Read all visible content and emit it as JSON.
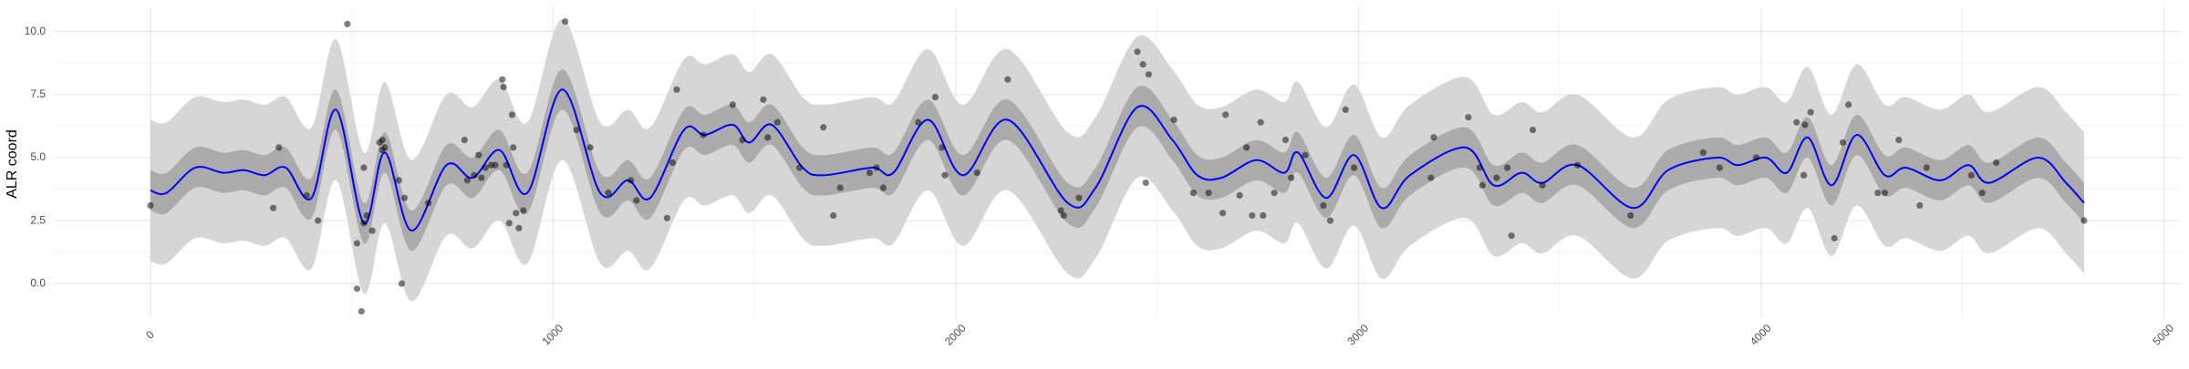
{
  "chart_data": {
    "type": "line",
    "y_label": "ALR coord",
    "xlim": [
      -240,
      5040
    ],
    "ylim": [
      -1.4,
      11
    ],
    "xticks": [
      0,
      1000,
      2000,
      3000,
      4000,
      5000
    ],
    "yticks": [
      {
        "value": 0,
        "label": "0.0"
      },
      2.5,
      {
        "value": 5,
        "label": "5.0"
      },
      7.5,
      {
        "value": 10,
        "label": "10.0"
      }
    ],
    "grid": true,
    "x": [
      0,
      40,
      111,
      180,
      232,
      284,
      336,
      400,
      461,
      530,
      582,
      648,
      735,
      800,
      867,
      936,
      1023,
      1117,
      1186,
      1241,
      1325,
      1377,
      1446,
      1487,
      1543,
      1620,
      1671,
      1793,
      1845,
      1931,
      2018,
      2129,
      2278,
      2347,
      2451,
      2538,
      2600,
      2660,
      2746,
      2816,
      2850,
      2920,
      2989,
      3058,
      3128,
      3266,
      3336,
      3405,
      3457,
      3544,
      3682,
      3769,
      3890,
      3942,
      4012,
      4064,
      4116,
      4175,
      4237,
      4307,
      4359,
      4445,
      4515,
      4567,
      4688,
      4757,
      4802
    ],
    "bands": [
      {
        "color": "#d6d6d6",
        "lower": [
          0.9,
          0.8,
          1.8,
          1.6,
          1.7,
          1.5,
          1.8,
          0.6,
          4.1,
          -0.4,
          2.4,
          -0.7,
          1.9,
          1.4,
          2.5,
          0.8,
          4.9,
          0.8,
          1.3,
          0.6,
          3.3,
          3.1,
          3.5,
          2.8,
          3.5,
          1.8,
          1.5,
          1.8,
          1.6,
          3.7,
          1.5,
          3.7,
          0.4,
          1.0,
          4.2,
          2.9,
          1.5,
          1.4,
          2.1,
          1.6,
          2.4,
          0.6,
          2.3,
          0.2,
          1.5,
          2.6,
          1.1,
          1.6,
          1.2,
          1.9,
          0.2,
          1.7,
          2.2,
          1.9,
          2.2,
          1.6,
          3.0,
          1.1,
          3.1,
          1.5,
          1.8,
          1.3,
          1.9,
          1.2,
          2.2,
          1.2,
          0.4
        ],
        "upper": [
          6.5,
          6.4,
          7.4,
          7.2,
          7.3,
          7.1,
          7.4,
          6.2,
          9.7,
          5.2,
          8.0,
          4.9,
          7.5,
          7.0,
          8.1,
          6.4,
          10.5,
          6.4,
          6.9,
          6.2,
          8.9,
          8.7,
          9.1,
          8.4,
          9.1,
          7.4,
          7.1,
          7.4,
          7.2,
          9.3,
          7.1,
          9.3,
          6.0,
          6.6,
          9.8,
          8.5,
          7.1,
          7.0,
          7.7,
          7.2,
          8.0,
          6.2,
          7.9,
          5.8,
          7.1,
          8.2,
          6.7,
          7.2,
          6.8,
          7.5,
          5.8,
          7.3,
          7.8,
          7.5,
          7.8,
          7.2,
          8.6,
          6.7,
          8.7,
          7.1,
          7.4,
          6.9,
          7.5,
          6.8,
          7.8,
          6.8,
          6.0
        ]
      },
      {
        "color": "#ababab",
        "lower": [
          2.9,
          2.8,
          3.8,
          3.6,
          3.7,
          3.5,
          3.8,
          2.6,
          6.1,
          1.6,
          4.4,
          1.3,
          3.9,
          3.4,
          4.5,
          2.8,
          6.9,
          2.8,
          3.3,
          2.6,
          5.3,
          5.1,
          5.5,
          4.8,
          5.5,
          3.8,
          3.5,
          3.8,
          3.6,
          5.7,
          3.5,
          5.7,
          2.4,
          3.0,
          6.2,
          4.9,
          3.5,
          3.4,
          4.1,
          3.6,
          4.4,
          2.6,
          4.3,
          2.2,
          3.5,
          4.6,
          3.1,
          3.6,
          3.2,
          3.9,
          2.2,
          3.7,
          4.2,
          3.9,
          4.2,
          3.6,
          5.0,
          3.1,
          5.1,
          3.5,
          3.8,
          3.3,
          3.9,
          3.2,
          4.2,
          3.2,
          2.4
        ],
        "upper": [
          4.5,
          4.4,
          5.4,
          5.2,
          5.3,
          5.1,
          5.4,
          4.2,
          7.7,
          3.2,
          6.0,
          2.9,
          5.5,
          5.0,
          6.1,
          4.4,
          8.5,
          4.4,
          4.9,
          4.2,
          6.9,
          6.7,
          7.1,
          6.4,
          7.1,
          5.4,
          5.1,
          5.4,
          5.2,
          7.3,
          5.1,
          7.3,
          4.0,
          4.6,
          7.8,
          6.5,
          5.1,
          5.0,
          5.7,
          5.2,
          6.0,
          4.2,
          5.9,
          3.8,
          5.1,
          6.2,
          4.7,
          5.2,
          4.8,
          5.5,
          3.8,
          5.3,
          5.8,
          5.5,
          5.8,
          5.2,
          6.6,
          4.7,
          6.7,
          5.1,
          5.4,
          4.9,
          5.5,
          4.8,
          5.8,
          4.8,
          4.0
        ]
      }
    ],
    "mean": {
      "color": "#0000ff",
      "values": [
        3.7,
        3.6,
        4.6,
        4.4,
        4.5,
        4.3,
        4.6,
        3.4,
        6.9,
        2.4,
        5.2,
        2.1,
        4.7,
        4.2,
        5.3,
        3.6,
        7.7,
        3.6,
        4.1,
        3.4,
        6.1,
        5.9,
        6.3,
        5.6,
        6.3,
        4.6,
        4.3,
        4.6,
        4.4,
        6.5,
        4.3,
        6.5,
        3.2,
        3.8,
        7.0,
        5.7,
        4.3,
        4.2,
        4.9,
        4.4,
        5.2,
        3.4,
        5.1,
        3.0,
        4.3,
        5.4,
        3.9,
        4.4,
        4.0,
        4.7,
        3.0,
        4.5,
        5.0,
        4.7,
        5.0,
        4.4,
        5.8,
        3.9,
        5.9,
        4.3,
        4.6,
        4.1,
        4.7,
        4.0,
        5.0,
        4.0,
        3.2
      ]
    },
    "points": {
      "color": "#000000",
      "x": [
        0,
        319,
        305,
        388,
        416,
        489,
        513,
        513,
        524,
        530,
        530,
        537,
        551,
        569,
        576,
        576,
        582,
        617,
        624,
        631,
        690,
        780,
        787,
        804,
        815,
        822,
        832,
        846,
        856,
        874,
        877,
        884,
        891,
        901,
        898,
        908,
        915,
        926,
        1030,
        1058,
        1092,
        1137,
        1193,
        1207,
        1283,
        1297,
        1307,
        1373,
        1446,
        1470,
        1522,
        1533,
        1557,
        1612,
        1671,
        1696,
        1713,
        1786,
        1803,
        1820,
        1907,
        1949,
        1966,
        1973,
        2053,
        2129,
        2261,
        2268,
        2306,
        2451,
        2465,
        2472,
        2479,
        2542,
        2590,
        2628,
        2663,
        2670,
        2705,
        2722,
        2736,
        2757,
        2763,
        2791,
        2819,
        2833,
        2868,
        2913,
        2930,
        2968,
        2989,
        3180,
        3187,
        3273,
        3301,
        3308,
        3343,
        3370,
        3380,
        3433,
        3457,
        3544,
        3676,
        3856,
        3897,
        3988,
        4088,
        4106,
        4109,
        4123,
        4182,
        4203,
        4217,
        4290,
        4307,
        4342,
        4394,
        4411,
        4522,
        4549,
        4584,
        4802
      ],
      "y": [
        3.1,
        5.4,
        3.0,
        3.5,
        2.5,
        10.3,
        1.6,
        -0.2,
        -1.1,
        4.6,
        2.4,
        2.7,
        2.1,
        5.6,
        5.7,
        5.3,
        5.4,
        4.1,
        0.0,
        3.4,
        3.2,
        5.7,
        4.1,
        4.3,
        5.1,
        4.2,
        4.6,
        4.7,
        4.7,
        8.1,
        7.8,
        4.7,
        2.4,
        5.4,
        6.7,
        2.8,
        2.2,
        2.9,
        10.4,
        6.1,
        5.4,
        3.6,
        4.1,
        3.3,
        2.6,
        4.8,
        7.7,
        5.9,
        7.1,
        5.7,
        7.3,
        5.8,
        6.4,
        4.6,
        6.2,
        2.7,
        3.8,
        4.4,
        4.6,
        3.8,
        6.4,
        7.4,
        5.4,
        4.3,
        4.4,
        8.1,
        2.9,
        2.7,
        3.4,
        9.2,
        8.7,
        4.0,
        8.3,
        6.5,
        3.6,
        3.6,
        2.8,
        6.7,
        3.5,
        5.4,
        2.7,
        6.4,
        2.7,
        3.6,
        5.7,
        4.2,
        5.1,
        3.1,
        2.5,
        6.9,
        4.6,
        4.2,
        5.8,
        6.6,
        4.6,
        3.9,
        4.2,
        4.6,
        1.9,
        6.1,
        3.9,
        4.7,
        2.7,
        5.2,
        4.6,
        5.0,
        6.4,
        4.3,
        6.3,
        6.8,
        1.8,
        5.6,
        7.1,
        3.6,
        3.6,
        5.7,
        3.1,
        4.6,
        4.3,
        3.6,
        4.8,
        2.5
      ]
    }
  }
}
